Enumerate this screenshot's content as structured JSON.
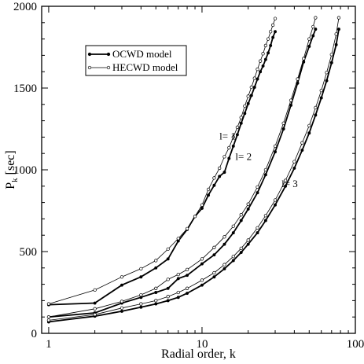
{
  "chart_data": {
    "type": "line",
    "title": "",
    "xlabel": "Radial order, k",
    "ylabel": "P_k [sec]",
    "ylabel_main": "P",
    "ylabel_sub": "k",
    "ylabel_unit": " [sec]",
    "xscale": "log",
    "xlim": [
      0.9,
      100
    ],
    "ylim": [
      0,
      2000
    ],
    "xticks": [
      1,
      10,
      100
    ],
    "xtick_labels": [
      "1",
      "10",
      "100"
    ],
    "yticks": [
      0,
      500,
      1000,
      1500,
      2000
    ],
    "ytick_labels": [
      "0",
      "500",
      "1000",
      "1500",
      "2000"
    ],
    "grid": false,
    "legend": {
      "placement": "top-left",
      "entries": [
        "OCWD model",
        "HECWD model"
      ]
    },
    "annotations": [
      "l= 1",
      "l= 2",
      "l= 3"
    ],
    "series": [
      {
        "name": "OCWD model",
        "degree": 1,
        "x": [
          1,
          2,
          3,
          4,
          5,
          6,
          7,
          8,
          9,
          10,
          11,
          12,
          13,
          14,
          15,
          16,
          17,
          18,
          19,
          20,
          21,
          22,
          23,
          24,
          25,
          26,
          27,
          28,
          29,
          30
        ],
        "values": [
          175,
          185,
          295,
          345,
          400,
          455,
          565,
          635,
          715,
          765,
          845,
          905,
          960,
          985,
          1070,
          1145,
          1215,
          1285,
          1345,
          1405,
          1455,
          1505,
          1555,
          1600,
          1635,
          1675,
          1715,
          1760,
          1810,
          1845
        ]
      },
      {
        "name": "HECWD model",
        "degree": 1,
        "x": [
          1,
          2,
          3,
          4,
          5,
          6,
          7,
          8,
          9,
          10,
          11,
          12,
          13,
          14,
          15,
          16,
          17,
          18,
          19,
          20,
          21,
          22,
          23,
          24,
          25,
          26,
          27,
          28,
          29,
          30
        ],
        "values": [
          180,
          265,
          345,
          395,
          445,
          515,
          580,
          640,
          715,
          785,
          880,
          950,
          1010,
          1080,
          1135,
          1200,
          1260,
          1320,
          1390,
          1450,
          1505,
          1560,
          1615,
          1665,
          1710,
          1760,
          1800,
          1845,
          1885,
          1925
        ]
      },
      {
        "name": "OCWD model",
        "degree": 2,
        "x": [
          1,
          2,
          3,
          4,
          5,
          6,
          7,
          8,
          10,
          12,
          14,
          16,
          18,
          20,
          23,
          26,
          30,
          34,
          38,
          42,
          46,
          50,
          53,
          55
        ],
        "values": [
          100,
          125,
          185,
          220,
          250,
          275,
          335,
          355,
          425,
          480,
          545,
          615,
          690,
          760,
          860,
          970,
          1110,
          1250,
          1395,
          1530,
          1660,
          1755,
          1820,
          1860
        ]
      },
      {
        "name": "HECWD model",
        "degree": 2,
        "x": [
          1,
          2,
          3,
          4,
          5,
          6,
          7,
          8,
          10,
          12,
          14,
          16,
          18,
          20,
          23,
          26,
          30,
          34,
          38,
          42,
          46,
          50,
          53,
          55
        ],
        "values": [
          100,
          150,
          195,
          235,
          275,
          330,
          360,
          390,
          455,
          525,
          590,
          655,
          725,
          790,
          895,
          1000,
          1145,
          1285,
          1425,
          1555,
          1680,
          1800,
          1875,
          1930
        ]
      },
      {
        "name": "OCWD model",
        "degree": 3,
        "x": [
          1,
          2,
          3,
          4,
          5,
          6,
          7,
          8,
          10,
          12,
          14,
          16,
          18,
          20,
          23,
          26,
          30,
          35,
          40,
          45,
          50,
          55,
          60,
          65,
          70,
          75,
          78
        ],
        "values": [
          70,
          105,
          135,
          160,
          180,
          200,
          220,
          245,
          295,
          345,
          395,
          445,
          495,
          545,
          615,
          690,
          785,
          900,
          1010,
          1120,
          1225,
          1335,
          1440,
          1545,
          1655,
          1765,
          1860
        ]
      },
      {
        "name": "HECWD model",
        "degree": 3,
        "x": [
          1,
          2,
          3,
          4,
          5,
          6,
          7,
          8,
          10,
          12,
          14,
          16,
          18,
          20,
          23,
          26,
          30,
          35,
          40,
          45,
          50,
          55,
          60,
          65,
          70,
          75,
          78
        ],
        "values": [
          80,
          115,
          155,
          180,
          200,
          225,
          250,
          275,
          325,
          370,
          420,
          470,
          520,
          570,
          645,
          720,
          815,
          935,
          1050,
          1165,
          1270,
          1380,
          1485,
          1595,
          1705,
          1830,
          1930
        ]
      }
    ]
  }
}
